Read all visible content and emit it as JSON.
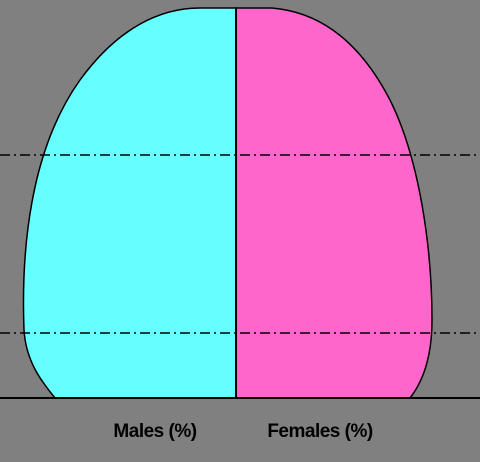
{
  "labels": {
    "males": "Males (%)",
    "females": "Females (%)"
  }
}
